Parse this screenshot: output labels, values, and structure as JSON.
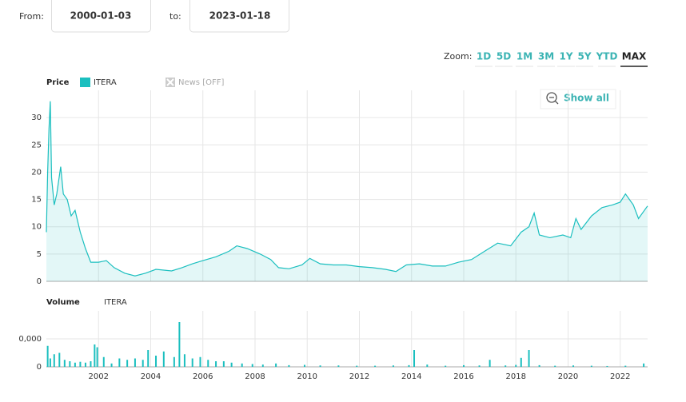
{
  "range": {
    "from_label": "From:",
    "from": "2000-01-03",
    "to_label": "to:",
    "to": "2023-01-18"
  },
  "zoom": {
    "label": "Zoom:",
    "options": [
      "1D",
      "5D",
      "1M",
      "3M",
      "1Y",
      "5Y",
      "YTD",
      "MAX"
    ],
    "active": 7
  },
  "news_toggle": "News [OFF]",
  "show_all": "Show all",
  "chart_data": [
    {
      "type": "line",
      "title": "Price",
      "x": [
        2000.0,
        2000.05,
        2000.1,
        2000.15,
        2000.2,
        2000.3,
        2000.4,
        2000.55,
        2000.65,
        2000.8,
        2000.95,
        2001.1,
        2001.3,
        2001.5,
        2001.7,
        2002.0,
        2002.3,
        2002.6,
        2003.0,
        2003.4,
        2003.8,
        2004.2,
        2004.8,
        2005.2,
        2005.6,
        2006.0,
        2006.5,
        2007.0,
        2007.3,
        2007.7,
        2008.2,
        2008.6,
        2008.9,
        2009.3,
        2009.8,
        2010.1,
        2010.5,
        2011.0,
        2011.5,
        2012.0,
        2012.5,
        2013.0,
        2013.4,
        2013.8,
        2014.3,
        2014.8,
        2015.3,
        2015.8,
        2016.3,
        2016.8,
        2017.3,
        2017.8,
        2018.2,
        2018.5,
        2018.7,
        2018.9,
        2019.3,
        2019.8,
        2020.1,
        2020.3,
        2020.5,
        2020.9,
        2021.3,
        2021.7,
        2022.0,
        2022.2,
        2022.5,
        2022.7,
        2023.0,
        2023.05
      ],
      "series": [
        {
          "name": "ITERA",
          "color": "#1bbfbf",
          "values": [
            9,
            20,
            28,
            33,
            19,
            14,
            16,
            21,
            16,
            15,
            12,
            13,
            9,
            6,
            3.5,
            3.5,
            3.8,
            2.5,
            1.5,
            1,
            1.5,
            2.2,
            1.9,
            2.5,
            3.2,
            3.8,
            4.5,
            5.5,
            6.5,
            6,
            5,
            4,
            2.5,
            2.3,
            3,
            4.2,
            3.2,
            3,
            3,
            2.7,
            2.5,
            2.2,
            1.8,
            3,
            3.2,
            2.8,
            2.8,
            3.5,
            4,
            5.5,
            7,
            6.5,
            9,
            10,
            12.5,
            8.5,
            8,
            8.5,
            8,
            11.5,
            9.5,
            12,
            13.5,
            14,
            14.5,
            16,
            14,
            11.5,
            13.5,
            13.8
          ]
        }
      ],
      "xlim": [
        2000,
        2023.05
      ],
      "xticks": [
        2002,
        2004,
        2006,
        2008,
        2010,
        2012,
        2014,
        2016,
        2018,
        2020,
        2022
      ],
      "ylim": [
        0,
        35
      ],
      "yticks": [
        0,
        5,
        10,
        15,
        20,
        25,
        30
      ],
      "grid": true
    },
    {
      "type": "bar",
      "title": "Volume",
      "x": [
        2000.05,
        2000.15,
        2000.3,
        2000.5,
        2000.7,
        2000.9,
        2001.1,
        2001.3,
        2001.5,
        2001.7,
        2001.85,
        2001.95,
        2002.2,
        2002.5,
        2002.8,
        2003.1,
        2003.4,
        2003.7,
        2003.9,
        2004.2,
        2004.5,
        2004.9,
        2005.1,
        2005.3,
        2005.6,
        2005.9,
        2006.2,
        2006.5,
        2006.8,
        2007.1,
        2007.5,
        2007.9,
        2008.3,
        2008.8,
        2009.3,
        2009.9,
        2010.5,
        2011.2,
        2011.9,
        2012.6,
        2013.3,
        2013.9,
        2014.1,
        2014.6,
        2015.3,
        2016.0,
        2016.6,
        2017.0,
        2017.6,
        2018.0,
        2018.2,
        2018.5,
        2018.9,
        2019.5,
        2020.2,
        2020.9,
        2021.5,
        2022.2,
        2022.9
      ],
      "series": [
        {
          "name": "ITERA",
          "color": "#1bbfbf",
          "values": [
            7500,
            3000,
            4500,
            5000,
            2500,
            2000,
            1500,
            1800,
            1500,
            2000,
            8000,
            7000,
            3500,
            1200,
            3000,
            2500,
            3000,
            2500,
            6000,
            4000,
            5500,
            3500,
            16000,
            4500,
            3000,
            3500,
            2500,
            2000,
            2000,
            1500,
            1200,
            1000,
            800,
            1200,
            600,
            700,
            500,
            500,
            400,
            400,
            500,
            600,
            6000,
            800,
            400,
            600,
            500,
            2500,
            500,
            700,
            3200,
            6000,
            600,
            400,
            500,
            400,
            300,
            400,
            1200
          ]
        }
      ],
      "xlim": [
        2000,
        2023.05
      ],
      "xticks": [
        2002,
        2004,
        2006,
        2008,
        2010,
        2012,
        2014,
        2016,
        2018,
        2020,
        2022
      ],
      "ylim": [
        0,
        20000
      ],
      "yticks": [
        0,
        {
          "value": 10000,
          "label": "0,000"
        }
      ],
      "grid": true
    }
  ]
}
